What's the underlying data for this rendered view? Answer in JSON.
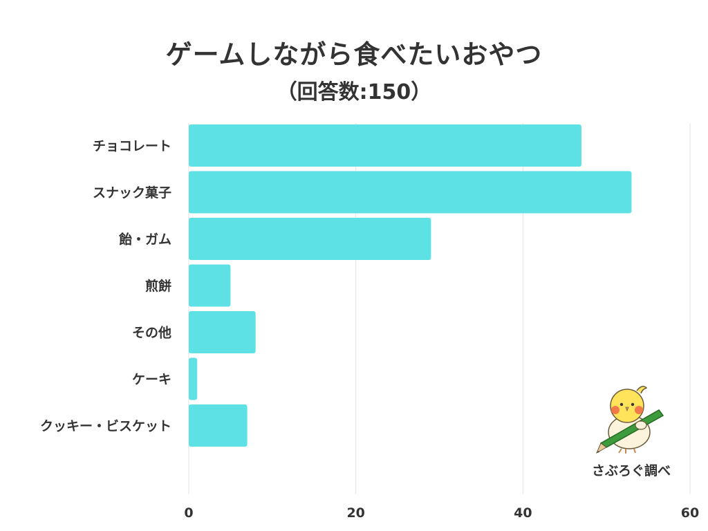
{
  "title": "ゲームしながら食べたいおやつ",
  "subtitle": "（回答数:150）",
  "credit": "さぶろぐ調べ",
  "colors": {
    "bar": "#5ee1e4",
    "grid": "#e3e3e3",
    "text": "#333333"
  },
  "chart_data": {
    "type": "bar",
    "orientation": "horizontal",
    "categories": [
      "チョコレート",
      "スナック菓子",
      "飴・ガム",
      "煎餅",
      "その他",
      "ケーキ",
      "クッキー・ビスケット"
    ],
    "values": [
      47,
      53,
      29,
      5,
      8,
      1,
      7
    ],
    "xlim": [
      0,
      60
    ],
    "xticks": [
      0,
      20,
      40,
      60
    ],
    "grid": "vertical",
    "legend": "none"
  }
}
